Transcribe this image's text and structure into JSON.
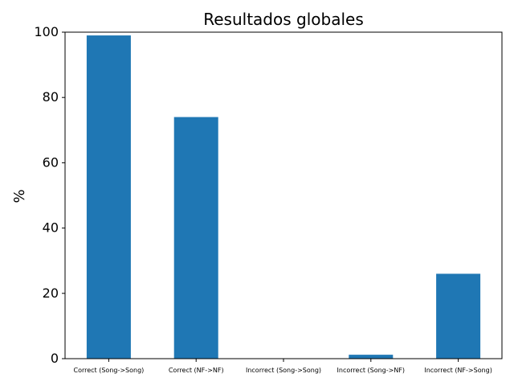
{
  "chart_data": {
    "type": "bar",
    "title": "Resultados globales",
    "xlabel": "",
    "ylabel": "%",
    "ylim": [
      0,
      100
    ],
    "yticks": [
      0,
      20,
      40,
      60,
      80,
      100
    ],
    "categories": [
      "Correct (Song->Song)",
      "Correct (NF->NF)",
      "Incorrect (Song->Song)",
      "Incorrect (Song->NF)",
      "Incorrect (NF->Song)"
    ],
    "values": [
      99,
      74,
      0,
      1.2,
      26
    ],
    "bar_color": "#1f77b4",
    "grid": false,
    "legend": "none"
  }
}
